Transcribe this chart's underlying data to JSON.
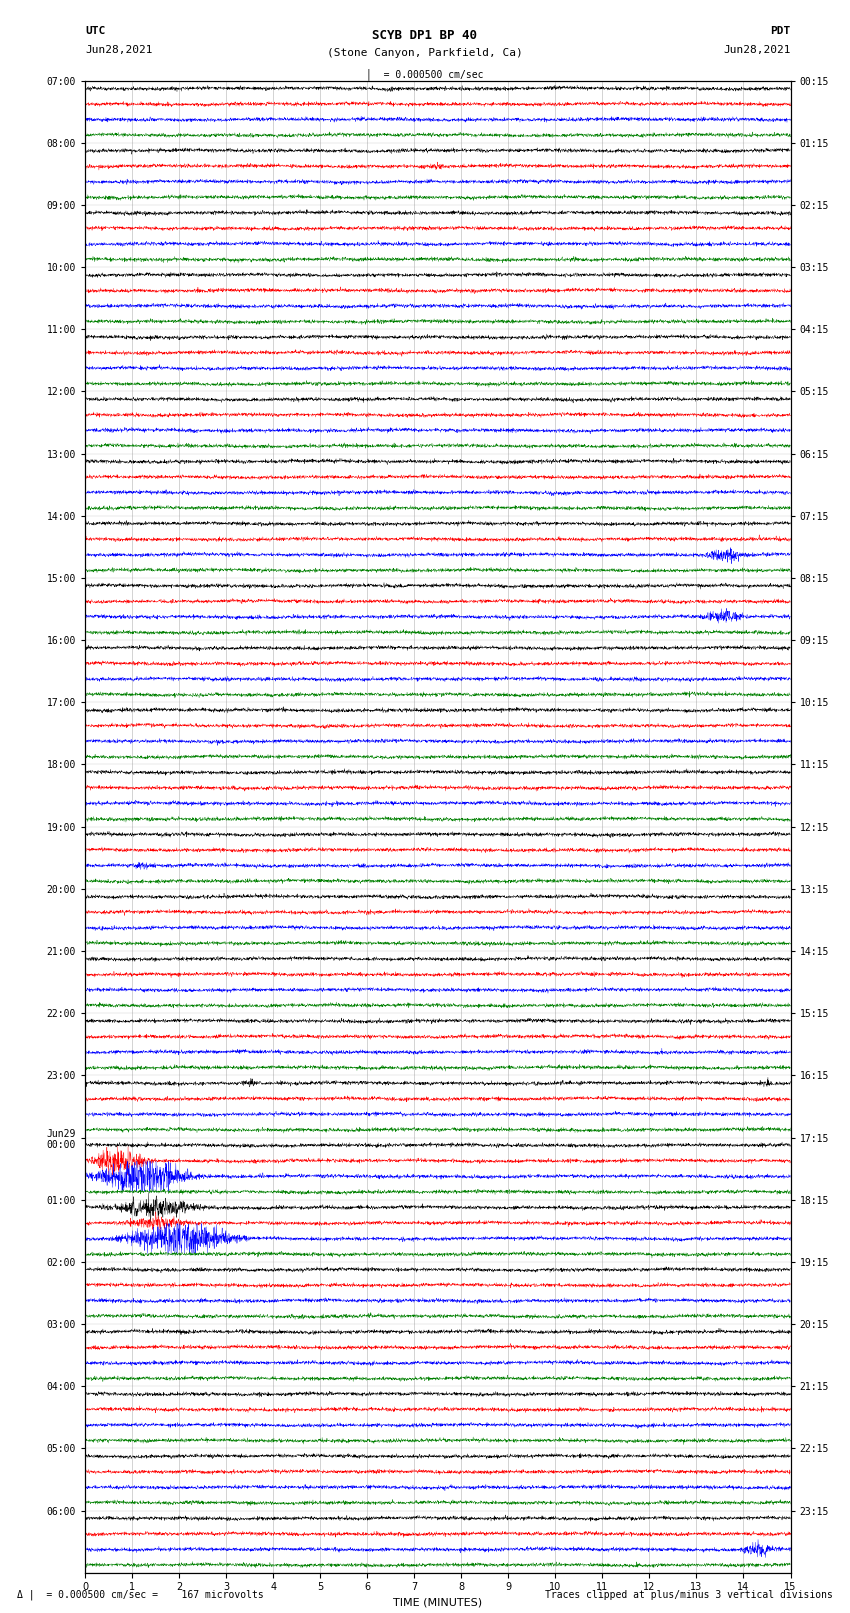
{
  "title_line1": "SCYB DP1 BP 40",
  "title_line2": "(Stone Canyon, Parkfield, Ca)",
  "scale_label": "= 0.000500 cm/sec",
  "left_date": "Jun28,2021",
  "right_date": "Jun28,2021",
  "left_tz": "UTC",
  "right_tz": "PDT",
  "footer_left": "= 0.000500 cm/sec =    167 microvolts",
  "footer_right": "Traces clipped at plus/minus 3 vertical divisions",
  "xlabel": "TIME (MINUTES)",
  "num_rows": 24,
  "colors": [
    "black",
    "red",
    "blue",
    "green"
  ],
  "bg_color": "white",
  "fig_width": 8.5,
  "fig_height": 16.13,
  "dpi": 100,
  "x_ticks": [
    0,
    1,
    2,
    3,
    4,
    5,
    6,
    7,
    8,
    9,
    10,
    11,
    12,
    13,
    14,
    15
  ],
  "utc_labels": [
    "07:00",
    "08:00",
    "09:00",
    "10:00",
    "11:00",
    "12:00",
    "13:00",
    "14:00",
    "15:00",
    "16:00",
    "17:00",
    "18:00",
    "19:00",
    "20:00",
    "21:00",
    "22:00",
    "23:00",
    "Jun29\n00:00",
    "01:00",
    "02:00",
    "03:00",
    "04:00",
    "05:00",
    "06:00"
  ],
  "pdt_labels": [
    "00:15",
    "01:15",
    "02:15",
    "03:15",
    "04:15",
    "05:15",
    "06:15",
    "07:15",
    "08:15",
    "09:15",
    "10:15",
    "11:15",
    "12:15",
    "13:15",
    "14:15",
    "15:15",
    "16:15",
    "17:15",
    "18:15",
    "19:15",
    "20:15",
    "21:15",
    "22:15",
    "23:15"
  ],
  "trace_amplitude": 0.32,
  "noise_scale": 0.055,
  "events": [
    {
      "row": 1,
      "ch": 1,
      "t": 7.5,
      "amp": 2.5,
      "dur": 0.4
    },
    {
      "row": 2,
      "ch": 0,
      "t": 10.2,
      "amp": 0.8,
      "dur": 0.3
    },
    {
      "row": 3,
      "ch": 0,
      "t": 8.8,
      "amp": 0.7,
      "dur": 0.3
    },
    {
      "row": 7,
      "ch": 2,
      "t": 13.6,
      "amp": 4.0,
      "dur": 1.2
    },
    {
      "row": 8,
      "ch": 2,
      "t": 13.6,
      "amp": 4.0,
      "dur": 1.2
    },
    {
      "row": 12,
      "ch": 2,
      "t": 1.2,
      "amp": 2.5,
      "dur": 0.6
    },
    {
      "row": 14,
      "ch": 1,
      "t": 10.8,
      "amp": 1.2,
      "dur": 0.4
    },
    {
      "row": 16,
      "ch": 0,
      "t": 3.5,
      "amp": 2.0,
      "dur": 0.5
    },
    {
      "row": 16,
      "ch": 0,
      "t": 14.5,
      "amp": 2.0,
      "dur": 0.5
    },
    {
      "row": 17,
      "ch": 2,
      "t": 0.8,
      "amp": 12.0,
      "dur": 3.5
    },
    {
      "row": 17,
      "ch": 1,
      "t": 0.5,
      "amp": 8.0,
      "dur": 2.0
    },
    {
      "row": 18,
      "ch": 2,
      "t": 2.0,
      "amp": 12.0,
      "dur": 3.0
    },
    {
      "row": 18,
      "ch": 0,
      "t": 1.5,
      "amp": 6.0,
      "dur": 2.5
    },
    {
      "row": 18,
      "ch": 1,
      "t": 1.5,
      "amp": 4.0,
      "dur": 2.0
    },
    {
      "row": 23,
      "ch": 2,
      "t": 14.3,
      "amp": 4.0,
      "dur": 1.0
    }
  ]
}
